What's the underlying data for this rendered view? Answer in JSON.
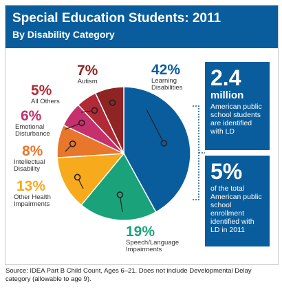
{
  "colors": {
    "header": "#0a5d9c",
    "learning": "#0a5d9c",
    "speech": "#1aa37a",
    "other_health": "#f6aa1c",
    "intellectual": "#e8762b",
    "emotional": "#c6306c",
    "all_others": "#b22a36",
    "autism": "#8e2424"
  },
  "header": {
    "title": "Special Education Students: 2011",
    "subtitle": "By Disability Category"
  },
  "chart_data": {
    "type": "pie",
    "title": "Special Education Students: 2011",
    "subtitle": "By Disability Category",
    "slices": [
      {
        "label_lines": [
          "Learning",
          "Disabilities"
        ],
        "value": 42,
        "display": "42%",
        "color_key": "learning"
      },
      {
        "label_lines": [
          "Speech/Language",
          "Impairments"
        ],
        "value": 19,
        "display": "19%",
        "color_key": "speech"
      },
      {
        "label_lines": [
          "Other Health",
          "Impairments"
        ],
        "value": 13,
        "display": "13%",
        "color_key": "other_health"
      },
      {
        "label_lines": [
          "Intellectual",
          "Disability"
        ],
        "value": 8,
        "display": "8%",
        "color_key": "intellectual"
      },
      {
        "label_lines": [
          "Emotional",
          "Disturbance"
        ],
        "value": 6,
        "display": "6%",
        "color_key": "emotional"
      },
      {
        "label_lines": [
          "All Others"
        ],
        "value": 5,
        "display": "5%",
        "color_key": "all_others"
      },
      {
        "label_lines": [
          "Autism"
        ],
        "value": 7,
        "display": "7%",
        "color_key": "autism"
      }
    ]
  },
  "facts": [
    {
      "big": "2.4",
      "unit": "million",
      "text": "American public school students are identified with LD"
    },
    {
      "big": "5%",
      "unit": "",
      "text": "of the total American public school enrollment identified with LD in 2011"
    }
  ],
  "source": "Source: IDEA Part B Child Count, Ages 6–21. Does not include Developmental Delay category (allowable to age 9)."
}
